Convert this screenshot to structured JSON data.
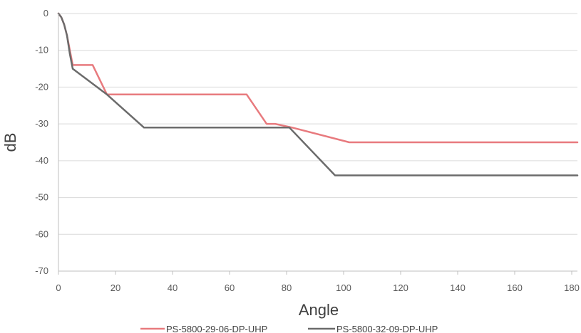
{
  "chart_data": {
    "type": "line",
    "xlabel": "Angle",
    "ylabel": "dB",
    "xlim": [
      0,
      182
    ],
    "ylim": [
      -70,
      0
    ],
    "xticks": [
      0,
      20,
      40,
      60,
      80,
      100,
      120,
      140,
      160,
      180
    ],
    "yticks": [
      0,
      -10,
      -20,
      -30,
      -40,
      -50,
      -60,
      -70
    ],
    "grid": "horizontal",
    "legend_position": "bottom",
    "series": [
      {
        "name": "PS-5800-29-06-DP-UHP",
        "color": "#e87a7e",
        "x": [
          0,
          1,
          2,
          3,
          4,
          5,
          12,
          17,
          66,
          73,
          76,
          82,
          102,
          182
        ],
        "y": [
          0,
          -1,
          -3,
          -6,
          -10,
          -14,
          -14,
          -22,
          -22,
          -30,
          -30,
          -31,
          -35,
          -35
        ]
      },
      {
        "name": "PS-5800-32-09-DP-UHP",
        "color": "#6b6b6b",
        "x": [
          0,
          1,
          2,
          3,
          4,
          5,
          17,
          30,
          81,
          97,
          182
        ],
        "y": [
          0,
          -1,
          -3,
          -6,
          -11,
          -15,
          -22,
          -31,
          -31,
          -44,
          -44
        ]
      }
    ]
  }
}
